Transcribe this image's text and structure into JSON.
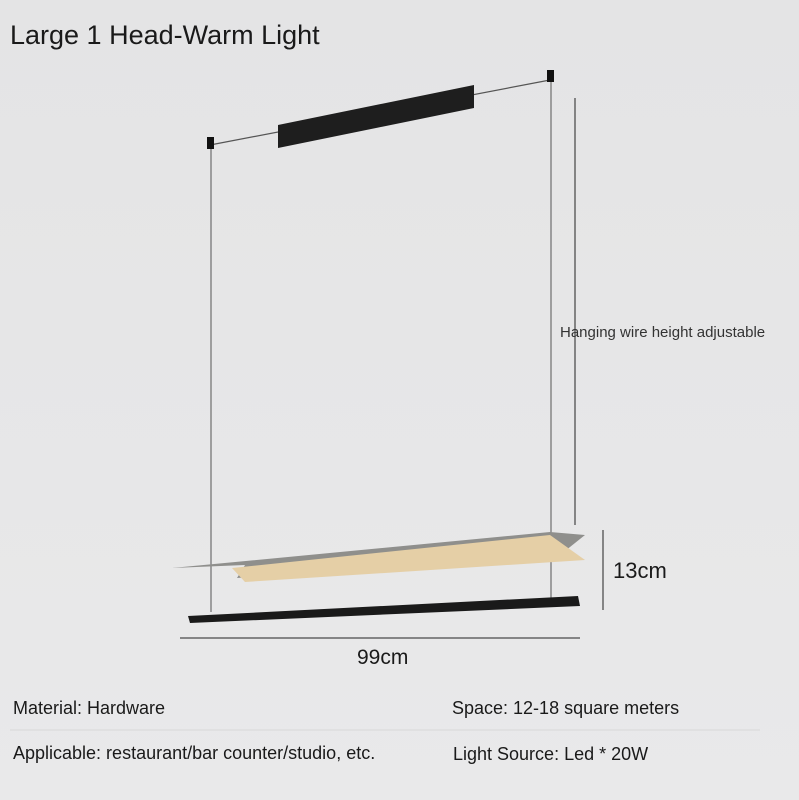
{
  "header": {
    "title": "Large 1 Head-Warm Light"
  },
  "dimensions": {
    "wire_note": "Hanging wire height adjustable",
    "height": "13cm",
    "width": "99cm"
  },
  "specs": {
    "material": "Material: Hardware",
    "space": "Space: 12-18 square meters",
    "applicable": "Applicable: restaurant/bar counter/studio, etc.",
    "light_source": "Light Source: Led * 20W"
  }
}
